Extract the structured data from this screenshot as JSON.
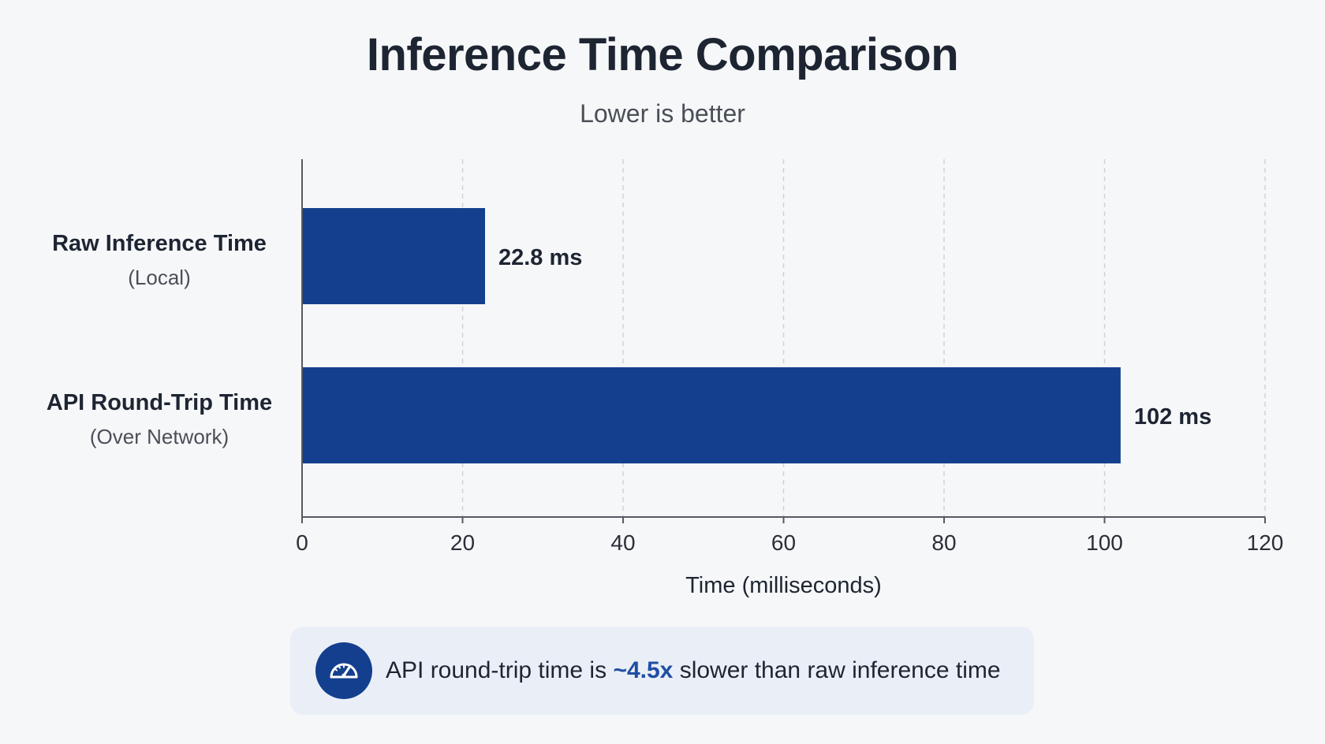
{
  "chart_data": {
    "type": "bar",
    "orientation": "horizontal",
    "title": "Inference Time Comparison",
    "subtitle": "Lower is better",
    "xlabel": "Time (milliseconds)",
    "ylabel": "",
    "xlim": [
      0,
      120
    ],
    "xticks": [
      0,
      20,
      40,
      60,
      80,
      100,
      120
    ],
    "grid": "vertical-dashed",
    "bar_color": "#133f8e",
    "categories": [
      {
        "label": "Raw Inference Time",
        "sublabel": "(Local)"
      },
      {
        "label": "API Round-Trip Time",
        "sublabel": "(Over Network)"
      }
    ],
    "values": [
      22.8,
      102
    ],
    "value_labels": [
      "22.8 ms",
      "102 ms"
    ]
  },
  "callout": {
    "text_before": "API round-trip time is ",
    "highlight": "~4.5x",
    "text_after": " slower than raw inference time",
    "icon": "speedometer-icon",
    "accent_color": "#1f4fa3"
  }
}
